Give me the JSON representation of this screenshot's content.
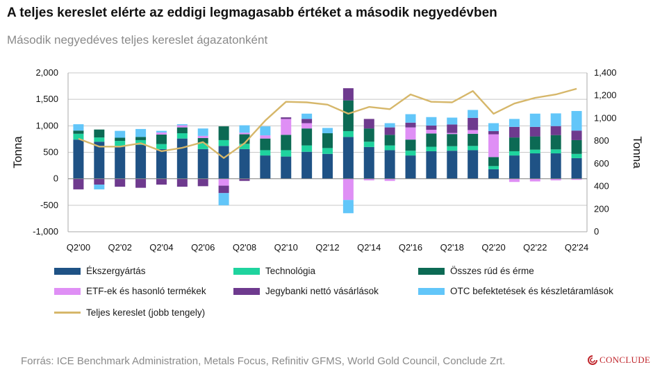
{
  "title": "A teljes kereslet elérte az eddigi legmagasabb értéket a második negyedévben",
  "subtitle": "Második negyedéves teljes kereslet ágazatonként",
  "source": "Forrás: ICE Benchmark Administration, Metals Focus, Refinitiv GFMS, World Gold Council, Conclude Zrt.",
  "brand": "CONCLUDE",
  "chart_data": {
    "type": "bar",
    "stacked": true,
    "categories": [
      "Q2'00",
      "Q2'01",
      "Q2'02",
      "Q2'03",
      "Q2'04",
      "Q2'05",
      "Q2'06",
      "Q2'07",
      "Q2'08",
      "Q2'09",
      "Q2'10",
      "Q2'11",
      "Q2'12",
      "Q2'13",
      "Q2'14",
      "Q2'15",
      "Q2'16",
      "Q2'17",
      "Q2'18",
      "Q2'19",
      "Q2'20",
      "Q2'21",
      "Q2'22",
      "Q2'23",
      "Q2'24"
    ],
    "x_tick_labels": [
      "Q2'00",
      "",
      "Q2'02",
      "",
      "Q2'04",
      "",
      "Q2'06",
      "",
      "Q2'08",
      "",
      "Q2'10",
      "",
      "Q2'12",
      "",
      "Q2'14",
      "",
      "Q2'16",
      "",
      "Q2'18",
      "",
      "Q2'20",
      "",
      "Q2'22",
      "",
      "Q2'24"
    ],
    "ylabel": "Tonna",
    "y2label": "Tonna",
    "ylim": [
      -1000,
      2000
    ],
    "yticks": [
      -1000,
      -500,
      0,
      500,
      1000,
      1500,
      2000
    ],
    "ytick_labels": [
      "-1,000",
      "-500",
      "0",
      "500",
      "1,000",
      "1,500",
      "2,000"
    ],
    "y2lim": [
      0,
      1400
    ],
    "y2ticks": [
      0,
      200,
      400,
      600,
      800,
      1000,
      1200,
      1400
    ],
    "y2tick_labels": [
      "0",
      "200",
      "400",
      "600",
      "800",
      "1,000",
      "1,200",
      "1,400"
    ],
    "gridlines": true,
    "legend_position": "bottom",
    "series": [
      {
        "name": "Ékszergyártás",
        "color": "#1f5285",
        "values": [
          740,
          700,
          620,
          640,
          560,
          760,
          560,
          620,
          560,
          440,
          420,
          510,
          470,
          790,
          600,
          540,
          440,
          520,
          530,
          540,
          180,
          440,
          480,
          480,
          390
        ]
      },
      {
        "name": "Technológia",
        "color": "#1fd39e",
        "values": [
          110,
          80,
          95,
          90,
          95,
          100,
          110,
          110,
          100,
          100,
          120,
          120,
          110,
          110,
          100,
          90,
          90,
          85,
          85,
          80,
          60,
          80,
          70,
          75,
          80
        ]
      },
      {
        "name": "Összes rúd és érme",
        "color": "#0c6a54",
        "values": [
          60,
          150,
          60,
          60,
          180,
          110,
          100,
          260,
          180,
          220,
          290,
          320,
          280,
          580,
          250,
          200,
          210,
          250,
          230,
          230,
          170,
          260,
          250,
          270,
          260
        ]
      },
      {
        "name": "ETF-ek és hasonló termékek",
        "color": "#df8ff5",
        "values": [
          0,
          0,
          0,
          0,
          40,
          40,
          40,
          -130,
          30,
          60,
          300,
          100,
          0,
          -400,
          -30,
          -40,
          230,
          70,
          20,
          70,
          430,
          -60,
          -50,
          -30,
          -20
        ]
      },
      {
        "name": "Jegybanki nettó vásárlások",
        "color": "#6e3a8e",
        "values": [
          -200,
          -110,
          -150,
          -170,
          -110,
          -150,
          -140,
          -140,
          -40,
          0,
          30,
          80,
          0,
          230,
          180,
          140,
          90,
          80,
          160,
          230,
          60,
          200,
          180,
          170,
          180
        ]
      },
      {
        "name": "OTC  befektetések és készletáramlások",
        "color": "#62c6f9",
        "values": [
          120,
          -90,
          130,
          150,
          30,
          20,
          140,
          -230,
          140,
          170,
          0,
          100,
          100,
          -250,
          0,
          80,
          160,
          160,
          130,
          150,
          150,
          150,
          250,
          240,
          370
        ]
      },
      {
        "name": "Teljes kereslet (jobb tengely)",
        "color": "#d6b76a",
        "type": "line",
        "axis": "right",
        "values": [
          820,
          750,
          750,
          780,
          710,
          740,
          790,
          650,
          780,
          980,
          1145,
          1140,
          1120,
          1040,
          1100,
          1080,
          1210,
          1145,
          1140,
          1240,
          1040,
          1130,
          1180,
          1210,
          1260
        ]
      }
    ]
  },
  "legend": {
    "col1": [
      "Ékszergyártás",
      "ETF-ek és hasonló termékek",
      "Teljes kereslet (jobb tengely)"
    ],
    "col2": [
      "Technológia",
      "Jegybanki nettó vásárlások"
    ],
    "col3": [
      "Összes rúd és érme",
      "OTC  befektetések és készletáramlások"
    ]
  }
}
